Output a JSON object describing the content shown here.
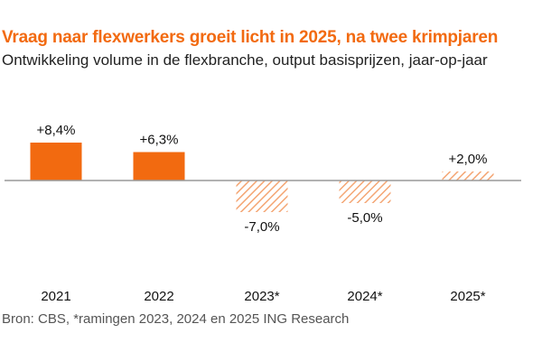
{
  "colors": {
    "accent": "#f26a10",
    "forecast": "#f4a674",
    "axis": "#999999"
  },
  "chart_data": {
    "type": "bar",
    "title": "Vraag naar flexwerkers groeit licht in 2025, na twee krimpjaren",
    "subtitle": "Ontwikkeling volume in de flexbranche, output basisprijzen, jaar-op-jaar",
    "categories": [
      "2021",
      "2022",
      "2023*",
      "2024*",
      "2025*"
    ],
    "values": [
      8.4,
      6.3,
      -7.0,
      -5.0,
      2.0
    ],
    "labels": [
      "+8,4%",
      "+6,3%",
      "-7,0%",
      "-5,0%",
      "+2,0%"
    ],
    "forecast": [
      false,
      false,
      true,
      true,
      true
    ],
    "xlabel": "",
    "ylabel": "",
    "ylim": [
      -10,
      10
    ],
    "grid": false,
    "source": "Bron: CBS, *ramingen 2023, 2024 en 2025 ING Research"
  }
}
